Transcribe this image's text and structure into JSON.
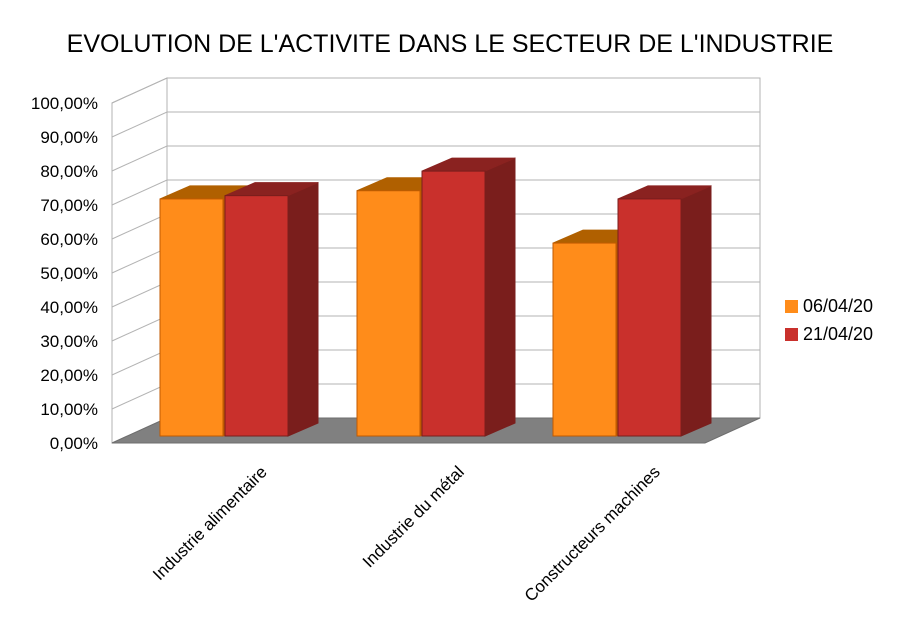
{
  "chart_data": {
    "type": "bar",
    "title": "EVOLUTION DE L'ACTIVITE DANS LE SECTEUR DE L'INDUSTRIE",
    "categories": [
      "Industrie alimentaire",
      "Industrie du métal",
      "Constructeurs machines"
    ],
    "series": [
      {
        "name": "06/04/20",
        "values": [
          72.5,
          75.0,
          59.0
        ],
        "color": "#ff8c1a",
        "side_color": "#c05a00",
        "top_color": "#b06000"
      },
      {
        "name": "21/04/20",
        "values": [
          73.5,
          81.0,
          72.5
        ],
        "color": "#c9302c",
        "side_color": "#7a1e1c",
        "top_color": "#8a2220"
      }
    ],
    "y_ticks": [
      "0,00%",
      "10,00%",
      "20,00%",
      "30,00%",
      "40,00%",
      "50,00%",
      "60,00%",
      "70,00%",
      "80,00%",
      "90,00%",
      "100,00%"
    ],
    "ylim": [
      0,
      100
    ],
    "grid": true,
    "legend_position": "right",
    "style": "3d-bar",
    "floor_color": "#808080"
  }
}
